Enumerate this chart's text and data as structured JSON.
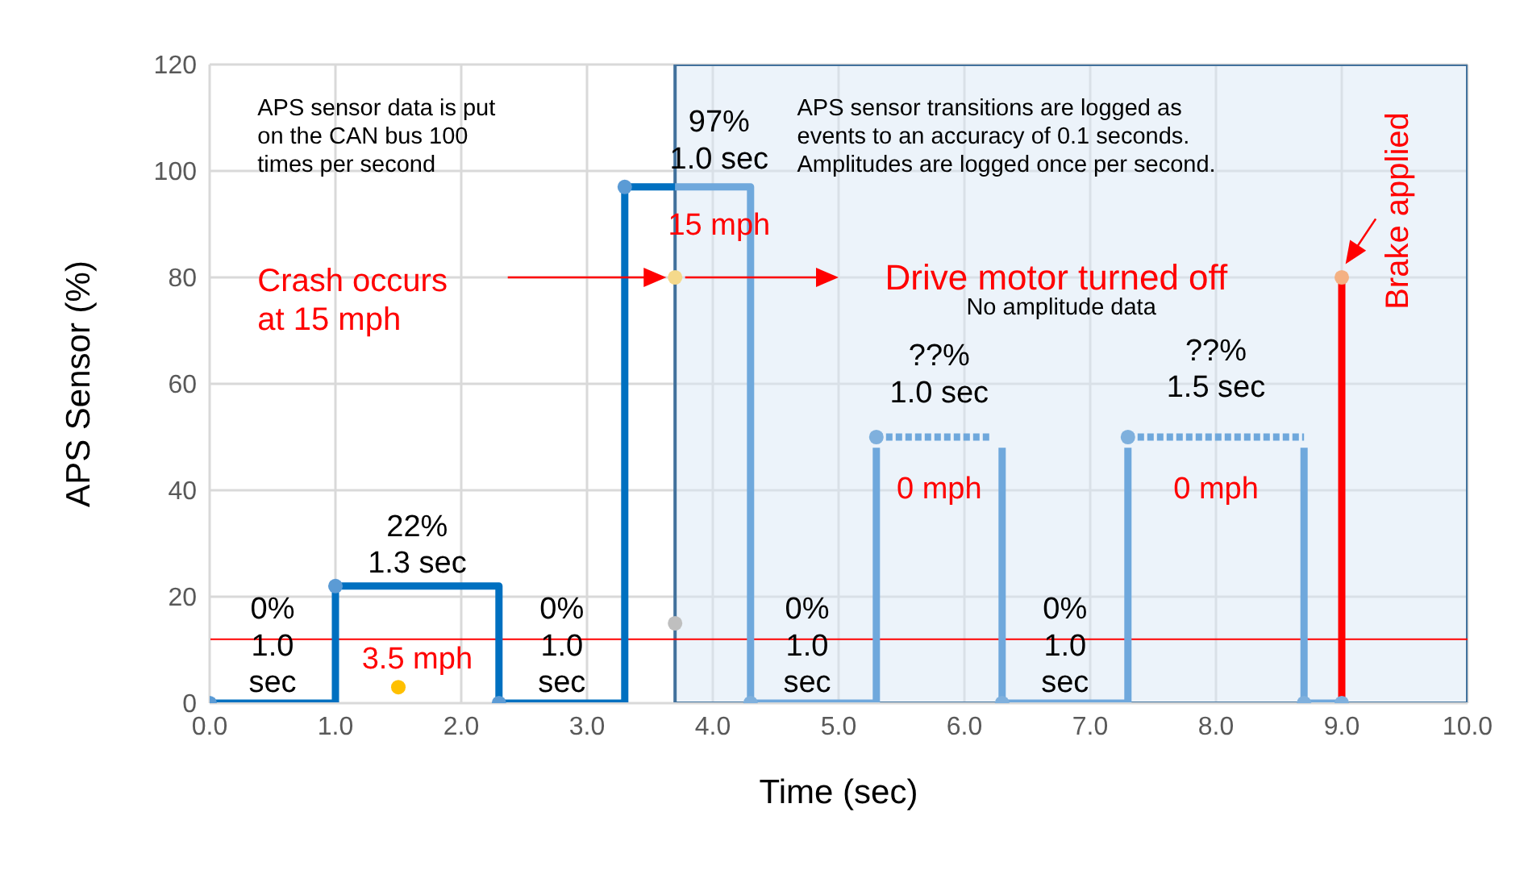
{
  "chart_data": {
    "type": "line",
    "xlabel": "Time (sec)",
    "ylabel": "APS Sensor (%)",
    "xlim": [
      0,
      10
    ],
    "xticks": [
      {
        "value": 0,
        "label": "0.0"
      },
      {
        "value": 1,
        "label": "1.0"
      },
      {
        "value": 2,
        "label": "2.0"
      },
      {
        "value": 3,
        "label": "3.0"
      },
      {
        "value": 4,
        "label": "4.0"
      },
      {
        "value": 5,
        "label": "5.0"
      },
      {
        "value": 6,
        "label": "6.0"
      },
      {
        "value": 7,
        "label": "7.0"
      },
      {
        "value": 8,
        "label": "8.0"
      },
      {
        "value": 9,
        "label": "9.0"
      },
      {
        "value": 10,
        "label": "10.0"
      }
    ],
    "ylim": [
      0,
      120
    ],
    "yticks": [
      0,
      20,
      40,
      60,
      80,
      100,
      120
    ],
    "grid": true,
    "bands": [
      {
        "axis": "x",
        "from": 3.7,
        "to": 10,
        "color": "#dae8f5"
      }
    ],
    "ref_lines": [
      {
        "axis": "y",
        "value": 12,
        "color": "#ff0000"
      }
    ],
    "series": [
      {
        "color": "#0070c0",
        "x": [
          0,
          1,
          1,
          2.3,
          2.3,
          3.3,
          3.3,
          3.7
        ],
        "values": [
          0,
          0,
          22,
          22,
          0,
          0,
          97,
          97
        ]
      },
      {
        "color": "#6fa8dc",
        "x": [
          3.7,
          4.3,
          4.3,
          5.3,
          5.3
        ],
        "values": [
          97,
          97,
          0,
          0,
          48
        ]
      },
      {
        "color": "#6fa8dc",
        "x": [
          6.3,
          6.3,
          7.3,
          7.3
        ],
        "values": [
          48,
          0,
          0,
          48
        ]
      },
      {
        "color": "#6fa8dc",
        "x": [
          8.7,
          8.7,
          9.0
        ],
        "values": [
          48,
          0,
          0
        ]
      },
      {
        "line_style": "dotted",
        "color": "#6fa8dc",
        "x": [
          5.3,
          6.2
        ],
        "values": [
          50,
          50
        ]
      },
      {
        "line_style": "dotted",
        "color": "#6fa8dc",
        "x": [
          7.3,
          8.7
        ],
        "values": [
          50,
          50
        ]
      },
      {
        "color": "#ff0000",
        "x": [
          9.0,
          9.0
        ],
        "values": [
          0,
          80
        ]
      },
      {
        "type": "scatter",
        "marker": "circle",
        "color": "#5b9bd5",
        "x": [
          0,
          1,
          2.3,
          3.3
        ],
        "values": [
          0,
          22,
          0,
          97
        ]
      },
      {
        "type": "scatter",
        "marker": "circle",
        "color": "#7fb0dd",
        "x": [
          4.3,
          5.3,
          6.3,
          7.3,
          8.7,
          9.0
        ],
        "values": [
          0,
          50,
          0,
          50,
          0,
          0
        ]
      },
      {
        "type": "scatter",
        "marker": "circle",
        "color": "#ffc000",
        "x": [
          1.5
        ],
        "values": [
          3
        ]
      },
      {
        "type": "scatter",
        "marker": "circle",
        "color": "#f5d98b",
        "x": [
          3.7
        ],
        "values": [
          80
        ]
      },
      {
        "type": "scatter",
        "marker": "circle",
        "color": "#bfbfbf",
        "x": [
          3.7
        ],
        "values": [
          15
        ]
      },
      {
        "type": "scatter",
        "marker": "circle",
        "color": "#f4b183",
        "x": [
          9.0
        ],
        "values": [
          80
        ]
      }
    ],
    "annotations": [
      "APS sensor data is put\non the CAN bus 100\ntimes per second",
      "APS sensor transitions are logged as\nevents to an accuracy of 0.1 seconds.\nAmplitudes are logged once per second.",
      "Crash occurs\nat 15 mph",
      "Drive motor turned off",
      "No amplitude data",
      "Brake applied",
      "97%\n1.0 sec",
      "15 mph",
      "22%\n1.3 sec",
      "0%\n1.0\nsec",
      "3.5 mph",
      "0%\n1.0\nsec",
      "0%\n1.0\nsec",
      "??%\n1.0 sec",
      "0 mph",
      "0%\n1.0\nsec",
      "??%\n1.5 sec",
      "0 mph"
    ]
  }
}
